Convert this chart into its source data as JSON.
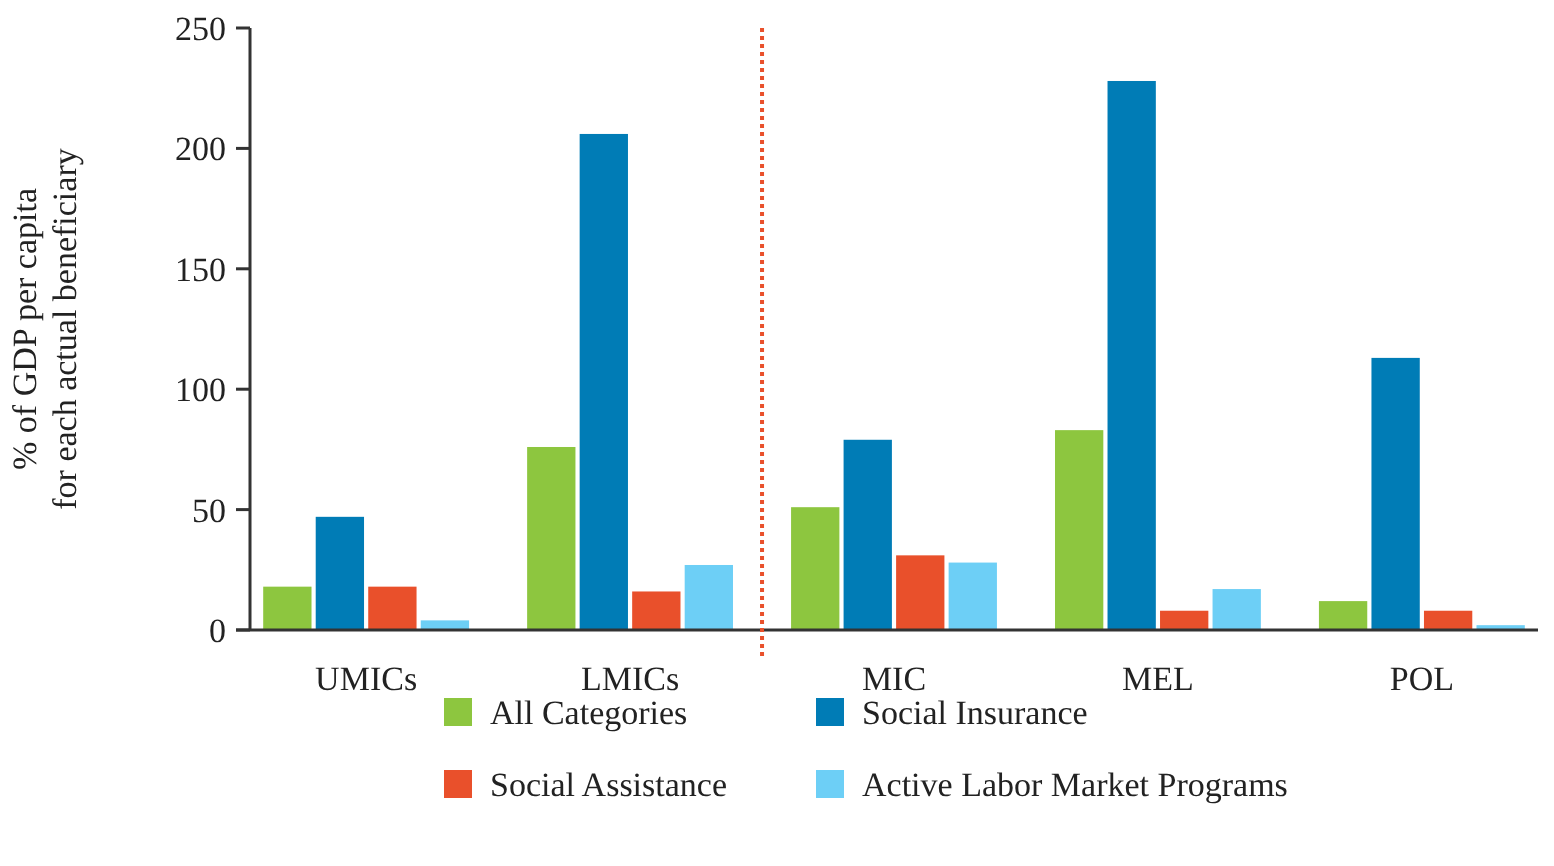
{
  "chart_data": {
    "type": "bar",
    "ylabel": "% of GDP per capita\nfor each actual beneficiary",
    "categories": [
      "UMICs",
      "LMICs",
      "MIC",
      "MEL",
      "POL"
    ],
    "series": [
      {
        "name": "All Categories",
        "color": "#8dc63f",
        "values": [
          18,
          76,
          51,
          83,
          12
        ]
      },
      {
        "name": "Social Insurance",
        "color": "#007cb6",
        "values": [
          47,
          206,
          79,
          228,
          113
        ]
      },
      {
        "name": "Social Assistance",
        "color": "#e9502b",
        "values": [
          18,
          16,
          31,
          8,
          8
        ]
      },
      {
        "name": "Active Labor Market Programs",
        "color": "#6dcff6",
        "values": [
          4,
          27,
          28,
          17,
          2
        ]
      }
    ],
    "ylim": [
      0,
      250
    ],
    "yticks": [
      0,
      50,
      100,
      150,
      200,
      250
    ],
    "grid": false,
    "legend": "bottom"
  }
}
